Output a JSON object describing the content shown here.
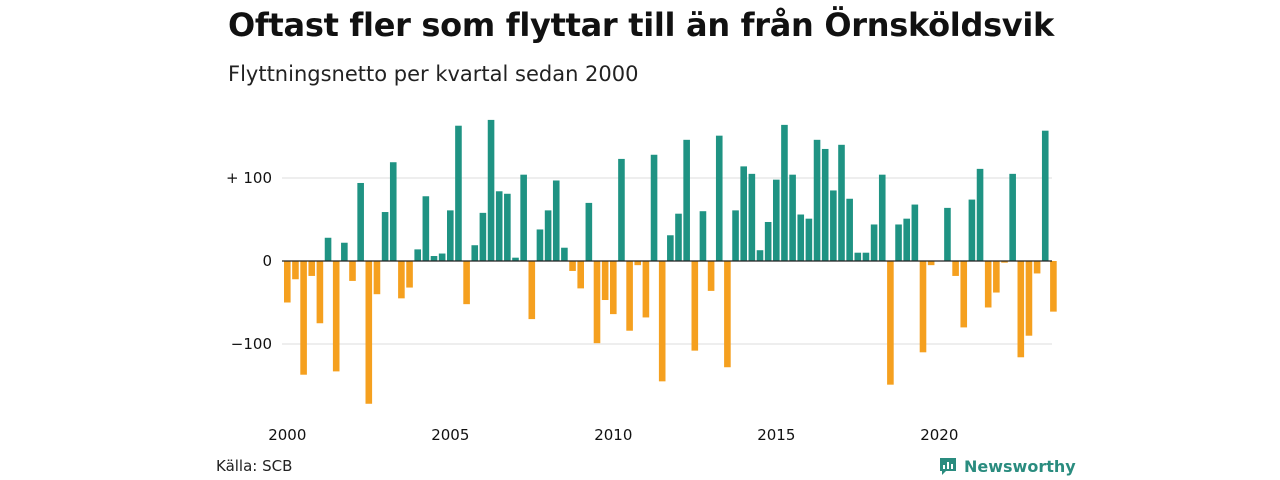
{
  "title": "Oftast fler som flyttar till än från Örnsköldsvik",
  "subtitle": "Flyttningsnetto per kvartal sedan 2000",
  "source": "Källa: SCB",
  "brand": {
    "name": "Newsworthy",
    "icon": "newsworthy-logo-icon",
    "color": "#2a8c7f"
  },
  "colors": {
    "positive": "#1f9383",
    "negative": "#f5a01f",
    "grid": "#dddddd",
    "zero": "#222222"
  },
  "chart_data": {
    "type": "bar",
    "title": "Oftast fler som flyttar till än från Örnsköldsvik",
    "subtitle": "Flyttningsnetto per kvartal sedan 2000",
    "x_start": 2000,
    "periods_per_year": 4,
    "xticks": [
      2000,
      2005,
      2010,
      2015,
      2020
    ],
    "yticks": [
      {
        "value": 100,
        "label": "+ 100"
      },
      {
        "value": 0,
        "label": "0"
      },
      {
        "value": -100,
        "label": "−100"
      }
    ],
    "ylim": [
      -175,
      170
    ],
    "grid": true,
    "legend": "none",
    "values": [
      -50,
      -22,
      -137,
      -18,
      -75,
      28,
      -133,
      22,
      -24,
      94,
      -172,
      -40,
      59,
      119,
      -45,
      -32,
      14,
      78,
      6,
      9,
      61,
      163,
      -52,
      19,
      58,
      170,
      84,
      81,
      4,
      104,
      -70,
      38,
      61,
      97,
      16,
      -12,
      -33,
      70,
      -99,
      -47,
      -64,
      123,
      -84,
      -5,
      -68,
      128,
      -145,
      31,
      57,
      146,
      -108,
      60,
      -36,
      151,
      -128,
      61,
      114,
      105,
      13,
      47,
      98,
      164,
      104,
      56,
      51,
      146,
      135,
      85,
      140,
      75,
      10,
      10,
      44,
      104,
      -149,
      44,
      51,
      68,
      -110,
      -5,
      0,
      64,
      -18,
      -80,
      74,
      111,
      -56,
      -38,
      -2,
      105,
      -116,
      -90,
      -15,
      157,
      -61
    ]
  }
}
